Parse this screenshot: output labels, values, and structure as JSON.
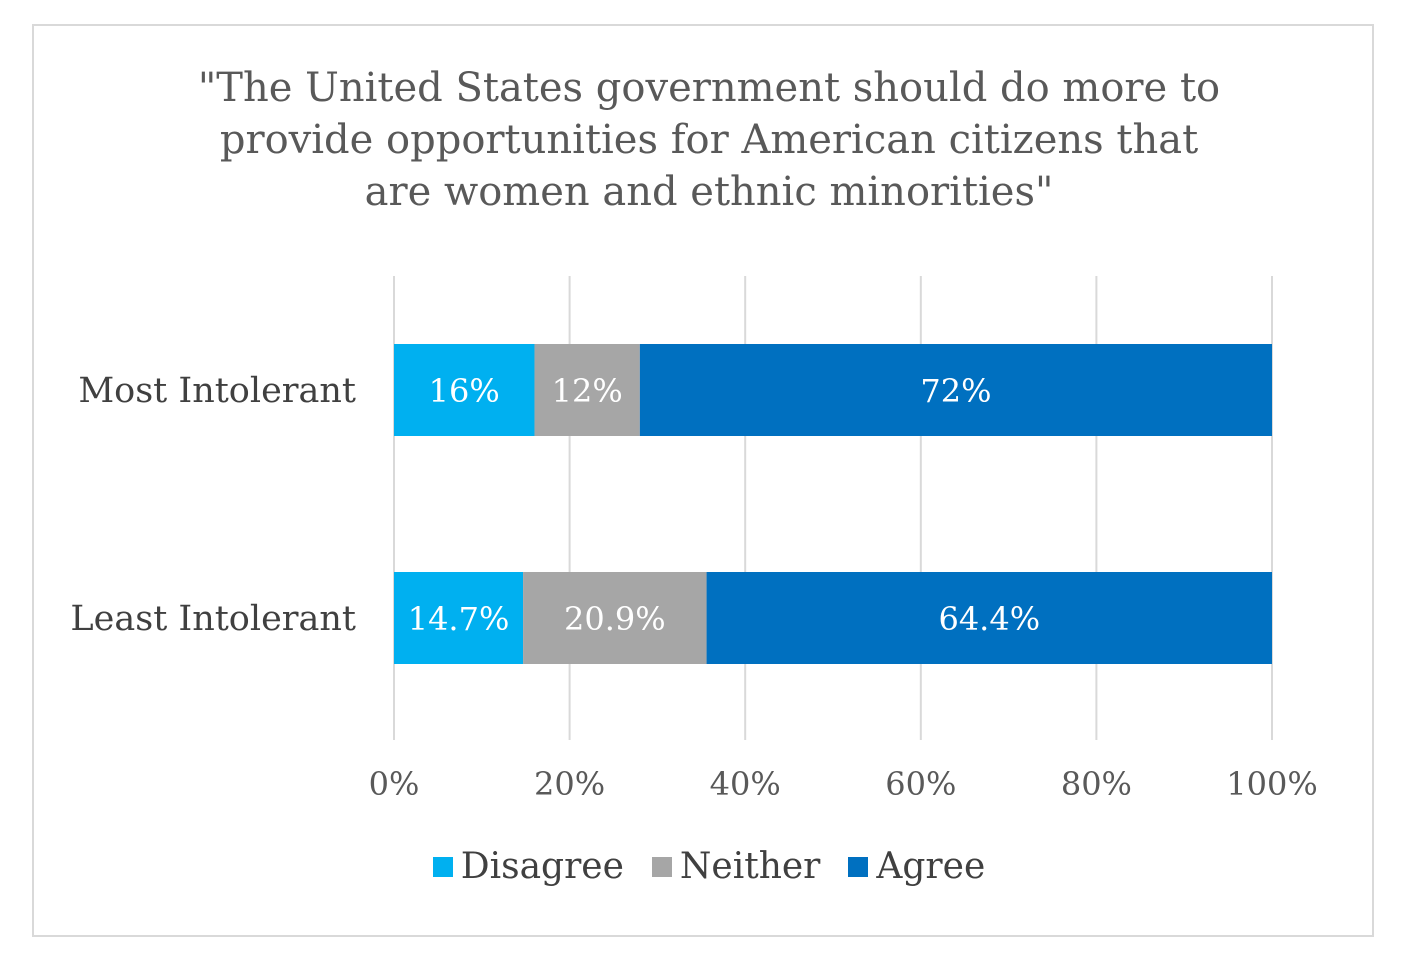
{
  "chart_data": {
    "type": "bar",
    "orientation": "horizontal",
    "stacked": true,
    "title_lines": [
      "\"The United States government should do more to",
      "provide opportunities for American citizens that",
      "are women and ethnic minorities\""
    ],
    "categories": [
      "Most Intolerant",
      "Least Intolerant"
    ],
    "series": [
      {
        "name": "Disagree",
        "color": "#00b0f0",
        "values": [
          16,
          14.7
        ],
        "labels": [
          "16%",
          "14.7%"
        ]
      },
      {
        "name": "Neither",
        "color": "#a6a6a6",
        "values": [
          12,
          20.9
        ],
        "labels": [
          "12%",
          "20.9%"
        ]
      },
      {
        "name": "Agree",
        "color": "#0070c0",
        "values": [
          72,
          64.4
        ],
        "labels": [
          "72%",
          "64.4%"
        ]
      }
    ],
    "xlim": [
      0,
      100
    ],
    "xticks": [
      0,
      20,
      40,
      60,
      80,
      100
    ],
    "xtick_labels": [
      "0%",
      "20%",
      "40%",
      "60%",
      "80%",
      "100%"
    ],
    "grid": true,
    "legend_position": "bottom"
  }
}
